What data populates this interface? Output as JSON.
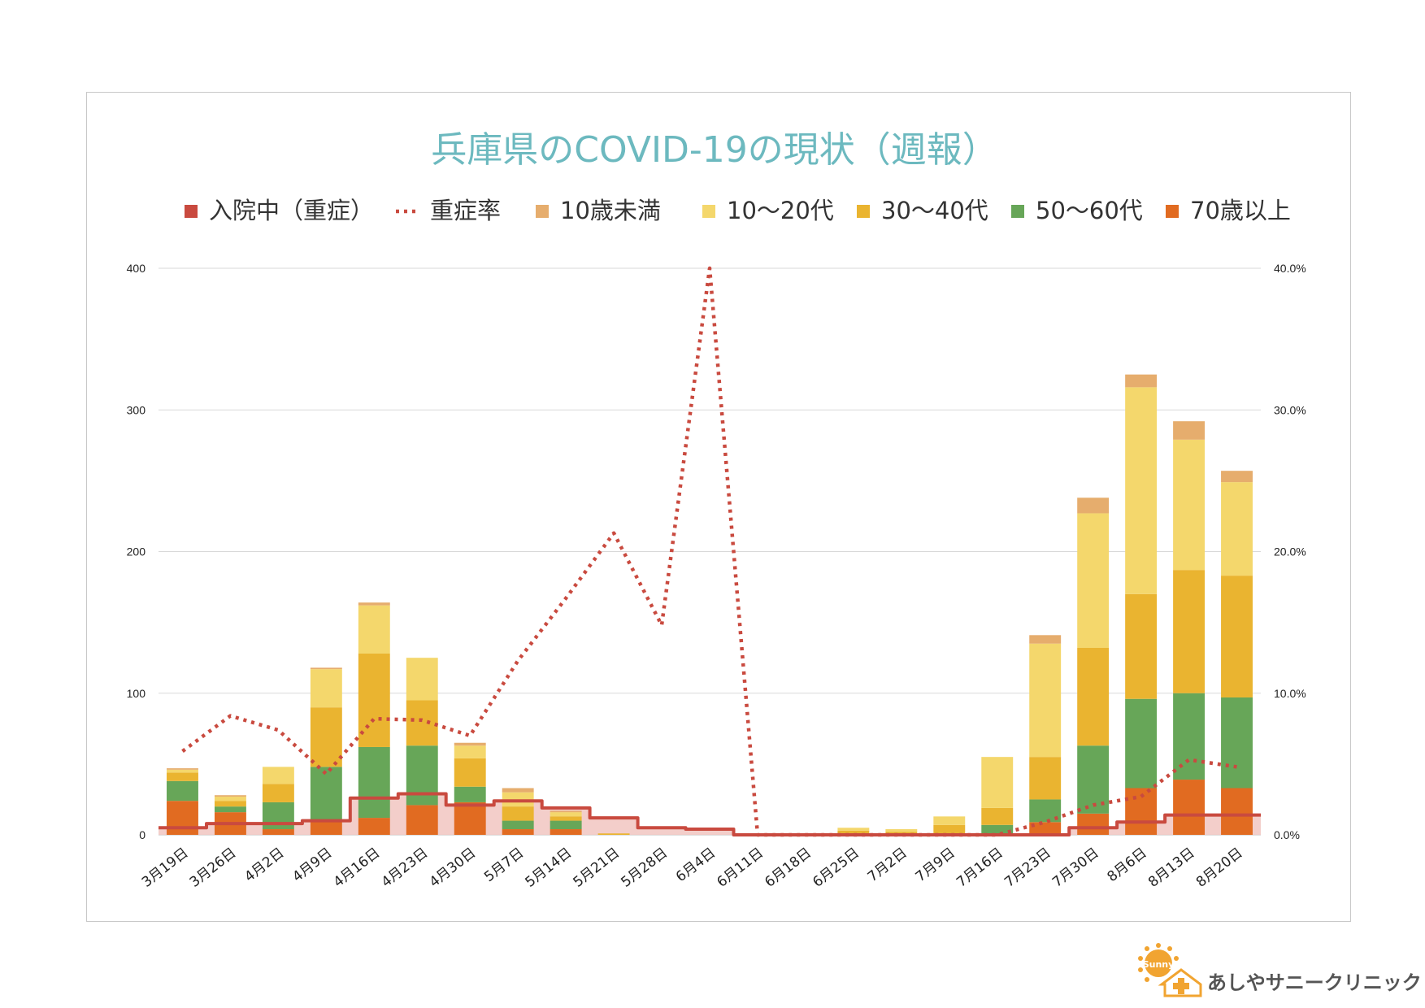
{
  "chart_data": {
    "type": "bar",
    "title": "兵庫県のCOVID-19の現状（週報）",
    "categories": [
      "3月19日",
      "3月26日",
      "4月2日",
      "4月9日",
      "4月16日",
      "4月23日",
      "4月30日",
      "5月7日",
      "5月14日",
      "5月21日",
      "5月28日",
      "6月4日",
      "6月11日",
      "6月18日",
      "6月25日",
      "7月2日",
      "7月9日",
      "7月16日",
      "7月23日",
      "7月30日",
      "8月6日",
      "8月13日",
      "8月20日"
    ],
    "ylim": [
      0,
      400
    ],
    "yticks": [
      0,
      100,
      200,
      300,
      400
    ],
    "y2lim": [
      0,
      0.4
    ],
    "y2ticks": [
      "0.0%",
      "10.0%",
      "20.0%",
      "30.0%",
      "40.0%"
    ],
    "legend_position": "top",
    "grid": true,
    "series": [
      {
        "name": "入院中（重症）",
        "kind": "step-area",
        "axis": "left",
        "color": "#c94a3f",
        "fill": "#f2c9c4",
        "values": [
          5,
          8,
          8,
          10,
          26,
          29,
          21,
          24,
          19,
          12,
          5,
          4,
          0,
          0,
          0,
          0,
          0,
          0,
          0,
          5,
          9,
          14,
          14
        ]
      },
      {
        "name": "重症率",
        "kind": "dotted-line",
        "axis": "right",
        "color": "#c94a3f",
        "values": [
          0.059,
          0.084,
          0.074,
          0.043,
          0.082,
          0.081,
          0.07,
          0.123,
          0.167,
          0.213,
          0.148,
          0.4,
          0,
          0,
          0,
          0,
          0,
          0,
          0.009,
          0.021,
          0.027,
          0.053,
          0.048
        ]
      },
      {
        "name": "70歳以上",
        "kind": "bar",
        "axis": "left",
        "color": "#e16b21",
        "values": [
          24,
          16,
          4,
          10,
          12,
          21,
          23,
          4,
          4,
          0,
          0,
          0,
          0,
          0,
          1,
          0,
          0,
          0,
          9,
          15,
          33,
          39,
          33
        ]
      },
      {
        "name": "50〜60代",
        "kind": "bar",
        "axis": "left",
        "color": "#67a658",
        "values": [
          14,
          4,
          19,
          38,
          50,
          42,
          11,
          6,
          6,
          0,
          0,
          0,
          0,
          0,
          0,
          0,
          1,
          7,
          16,
          48,
          63,
          61,
          64
        ]
      },
      {
        "name": "30〜40代",
        "kind": "bar",
        "axis": "left",
        "color": "#eab430",
        "values": [
          6,
          4,
          13,
          42,
          66,
          32,
          20,
          10,
          3,
          1,
          0,
          0,
          0,
          0,
          2,
          2,
          6,
          12,
          30,
          69,
          74,
          87,
          86
        ]
      },
      {
        "name": "10〜20代",
        "kind": "bar",
        "axis": "left",
        "color": "#f4d76c",
        "values": [
          2,
          3,
          12,
          27,
          34,
          30,
          9,
          10,
          3,
          0,
          0,
          0,
          0,
          0,
          2,
          2,
          6,
          36,
          80,
          95,
          146,
          92,
          66
        ]
      },
      {
        "name": "10歳未満",
        "kind": "bar",
        "axis": "left",
        "color": "#e6ad6d",
        "values": [
          1,
          1,
          0,
          1,
          2,
          0,
          2,
          3,
          1,
          0,
          0,
          0,
          0,
          0,
          0,
          0,
          0,
          0,
          6,
          11,
          9,
          13,
          8
        ]
      }
    ],
    "legend_order": [
      "入院中（重症）",
      "重症率",
      "10歳未満",
      "10〜20代",
      "30〜40代",
      "50〜60代",
      "70歳以上"
    ]
  },
  "logo": {
    "name": "あしやサニークリニック",
    "badge_text": "Sunny"
  }
}
